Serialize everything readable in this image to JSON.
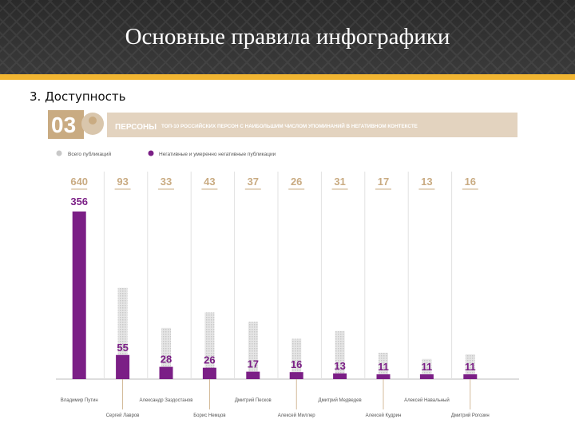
{
  "slide": {
    "title": "Основные правила инфографики",
    "subtitle": "3. Доступность"
  },
  "infographic": {
    "number": "03",
    "tag": "ПЕРСОНЫ",
    "banner": "ТОП-10 РОССИЙСКИХ ПЕРСОН С НАИБОЛЬШИМ ЧИСЛОМ УПОМИНАНИЙ В НЕГАТИВНОМ КОНТЕКСТЕ"
  },
  "colors": {
    "total": "#c8c8c8",
    "negative": "#7b1f86",
    "accent": "#c9ab82",
    "banner": "#e3d3bf"
  },
  "chart_data": {
    "type": "bar",
    "title": "ТОП-10 РОССИЙСКИХ ПЕРСОН С НАИБОЛЬШИМ ЧИСЛОМ УПОМИНАНИЙ В НЕГАТИВНОМ КОНТЕКСТЕ",
    "legend_position": "top-left",
    "categories": [
      "Владимир Путин",
      "Сергей Лавров",
      "Александр Заздостанов",
      "Борис Немцов",
      "Дмитрий Песков",
      "Алексей Миллер",
      "Дмитрий Медведев",
      "Алексей Кудрин",
      "Алексей Навальный",
      "Дмитрий Рогозин"
    ],
    "series": [
      {
        "name": "Всего публикаций",
        "values": [
          640,
          93,
          33,
          43,
          37,
          26,
          31,
          17,
          13,
          16
        ]
      },
      {
        "name": "Негативные и умеренно негативные публикации",
        "values": [
          356,
          55,
          28,
          26,
          17,
          16,
          13,
          11,
          11,
          11
        ]
      }
    ]
  }
}
